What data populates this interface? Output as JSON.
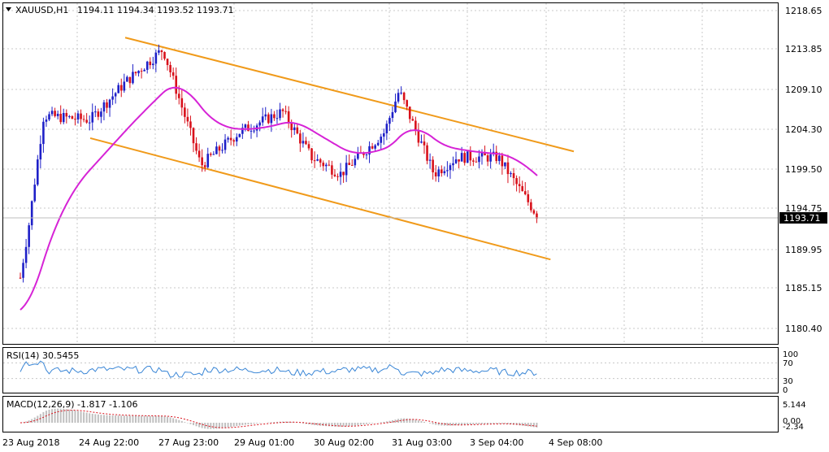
{
  "header": {
    "symbol": "XAUUSD,H1",
    "ohlc": "1194.11 1194.34 1193.52 1193.71"
  },
  "price_axis": {
    "ticks": [
      "1218.65",
      "1213.85",
      "1209.10",
      "1204.30",
      "1199.50",
      "1194.75",
      "1189.95",
      "1185.15",
      "1180.40"
    ],
    "current_label": "1193.71"
  },
  "rsi": {
    "title": "RSI(14) 30.5455",
    "ticks": [
      "100",
      "70",
      "30",
      "0"
    ]
  },
  "macd": {
    "title": "MACD(12,26,9) -1.817 -1.106",
    "ticks": [
      "5.144",
      "0.00",
      "-2.34"
    ]
  },
  "time_axis": {
    "labels": [
      "23 Aug 2018",
      "24 Aug 22:00",
      "27 Aug 23:00",
      "29 Aug 01:00",
      "30 Aug 02:00",
      "31 Aug 03:00",
      "3 Sep 04:00",
      "4 Sep 08:00"
    ]
  },
  "colors": {
    "bull": "#1e20c8",
    "bear": "#d8111b",
    "ma": "#d623d6",
    "channel": "#f09a1a",
    "rsi_line": "#3a86d6",
    "macd_hist": "#c0c0c0",
    "macd_signal": "#d8111b",
    "grid": "#c8c8c8"
  },
  "chart_data": {
    "type": "candlestick",
    "title": "XAUUSD,H1",
    "y_range": [
      1178.0,
      1220.0
    ],
    "close_series_approx": [
      {
        "x": "23 Aug 2018",
        "y": 1186.5
      },
      {
        "x": "24 Aug 01:00",
        "y": 1193.0
      },
      {
        "x": "24 Aug 06:00",
        "y": 1206.0
      },
      {
        "x": "24 Aug 22:00",
        "y": 1205.5
      },
      {
        "x": "27 Aug 10:00",
        "y": 1210.0
      },
      {
        "x": "27 Aug 23:00",
        "y": 1214.0
      },
      {
        "x": "28 Aug 12:00",
        "y": 1200.0
      },
      {
        "x": "29 Aug 01:00",
        "y": 1204.0
      },
      {
        "x": "29 Aug 16:00",
        "y": 1206.5
      },
      {
        "x": "30 Aug 02:00",
        "y": 1201.0
      },
      {
        "x": "30 Aug 12:00",
        "y": 1199.0
      },
      {
        "x": "31 Aug 03:00",
        "y": 1204.0
      },
      {
        "x": "31 Aug 08:00",
        "y": 1209.0
      },
      {
        "x": "31 Aug 20:00",
        "y": 1199.0
      },
      {
        "x": "3 Sep 04:00",
        "y": 1201.0
      },
      {
        "x": "3 Sep 18:00",
        "y": 1201.0
      },
      {
        "x": "4 Sep 08:00",
        "y": 1193.71
      }
    ],
    "current_price": 1193.71,
    "rsi_value": 30.5455,
    "macd": {
      "main": -1.817,
      "signal": -1.106
    },
    "channel_upper": [
      {
        "x": "27 Aug 10:00",
        "y": 1215.4
      },
      {
        "x": "4 Sep 20:00",
        "y": 1201.7
      }
    ],
    "channel_lower": [
      {
        "x": "24 Aug 22:00",
        "y": 1203.3
      },
      {
        "x": "4 Sep 12:00",
        "y": 1188.7
      }
    ]
  }
}
